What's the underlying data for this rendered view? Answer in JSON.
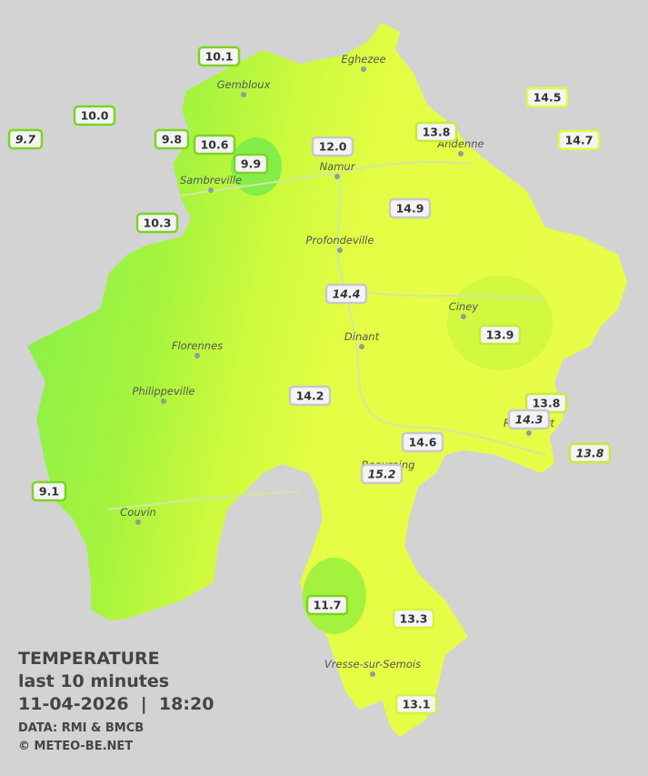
{
  "legend": {
    "title": "TEMPERATURE",
    "subtitle": "last 10 minutes",
    "datetime": "11-04-2026  |  18:20",
    "source": "DATA: RMI & BMCB",
    "copyright": "© METEO-BE.NET"
  },
  "towns": [
    "Eghezee",
    "Gembloux",
    "Andenne",
    "Namur",
    "Sambreville",
    "Profondeville",
    "Ciney",
    "Dinant",
    "Florennes",
    "Philippeville",
    "Rochefort",
    "Beauraing",
    "Couvin",
    "Vresse-sur-Semois"
  ],
  "stations": [
    {
      "label": "10.1",
      "color": "#7ed321"
    },
    {
      "label": "10.0",
      "color": "#7ed321"
    },
    {
      "label": "9.7",
      "color": "#7ed321",
      "italic": true
    },
    {
      "label": "9.8",
      "color": "#7ed321"
    },
    {
      "label": "10.6",
      "color": "#7ed321"
    },
    {
      "label": "9.9",
      "color": "#7ed321"
    },
    {
      "label": "12.0",
      "color": "#c8c8c8"
    },
    {
      "label": "13.8",
      "color": "#c6ec3a"
    },
    {
      "label": "14.5",
      "color": "#e4f940"
    },
    {
      "label": "14.7",
      "color": "#e4f940"
    },
    {
      "label": "10.3",
      "color": "#7ed321"
    },
    {
      "label": "14.9",
      "color": "#c8c8c8"
    },
    {
      "label": "14.4",
      "color": "#c8c8c8",
      "italic": true
    },
    {
      "label": "13.9",
      "color": "#c6ec3a"
    },
    {
      "label": "14.2",
      "color": "#c8c8c8"
    },
    {
      "label": "13.8",
      "color": "#c6ec3a"
    },
    {
      "label": "14.3",
      "color": "#c8c8c8",
      "italic": true
    },
    {
      "label": "13.8",
      "color": "#c6ec3a",
      "italic": true
    },
    {
      "label": "14.6",
      "color": "#c8c8c8"
    },
    {
      "label": "15.2",
      "color": "#c8c8c8",
      "italic": true
    },
    {
      "label": "9.1",
      "color": "#7ed321"
    },
    {
      "label": "11.7",
      "color": "#7ed321"
    },
    {
      "label": "13.3",
      "color": "#d8f33c"
    },
    {
      "label": "13.1",
      "color": "#d8f33c"
    }
  ]
}
